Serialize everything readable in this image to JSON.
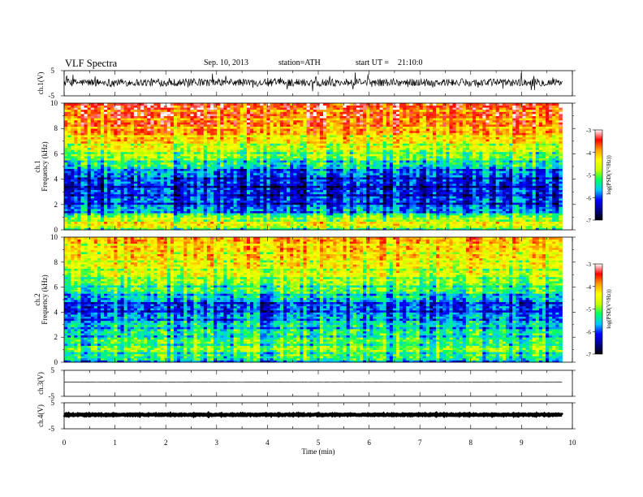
{
  "header": {
    "title": "VLF Spectra",
    "date": "Sep. 10, 2013",
    "station": "station=ATH",
    "start_label": "start UT =",
    "start_time": "21:10:0"
  },
  "colors": {
    "waveform": "#000000",
    "colormap": [
      "#000000",
      "#00008b",
      "#0000ff",
      "#00c8ff",
      "#00ff64",
      "#c8ff00",
      "#ffff00",
      "#ffa000",
      "#ff0000",
      "#ffffff"
    ]
  },
  "chart_data": [
    {
      "type": "line",
      "name": "ch1-waveform",
      "ylabel": "ch.1(V)",
      "ylim": [
        -5,
        5
      ],
      "y_ticks": [
        "5",
        "-5"
      ],
      "xlim": [
        0,
        10
      ],
      "data_end_min": 9.8,
      "baseline_v": 0.3,
      "noise_amplitude_v": 3
    },
    {
      "type": "heatmap",
      "name": "ch1-spectrogram",
      "ylabel": "ch.1 Frequency (kHz)",
      "ylim": [
        0,
        10
      ],
      "y_ticks": [
        "0",
        "2",
        "4",
        "6",
        "8",
        "10"
      ],
      "xlim": [
        0,
        10
      ],
      "data_end_min": 9.8,
      "colorbar": {
        "label": "log(PSD(V²/Hz))",
        "range": [
          -7,
          -3
        ],
        "ticks": [
          "-3",
          "-4",
          "-5",
          "-6",
          "-7"
        ]
      },
      "profile_kHz": [
        [
          0,
          -5.0
        ],
        [
          0.6,
          -4.3
        ],
        [
          1.5,
          -5.7
        ],
        [
          2.0,
          -6.0
        ],
        [
          3.5,
          -6.2
        ],
        [
          4.5,
          -5.9
        ],
        [
          5.5,
          -5.1
        ],
        [
          6.5,
          -4.6
        ],
        [
          8.0,
          -3.8
        ],
        [
          10,
          -3.5
        ]
      ]
    },
    {
      "type": "heatmap",
      "name": "ch2-spectrogram",
      "ylabel": "ch.2 Frequency (kHz)",
      "ylim": [
        0,
        10
      ],
      "y_ticks": [
        "0",
        "2",
        "4",
        "6",
        "8",
        "10"
      ],
      "xlim": [
        0,
        10
      ],
      "data_end_min": 9.8,
      "colorbar": {
        "label": "log(PSD(V²/Hz))",
        "range": [
          -7,
          -3
        ],
        "ticks": [
          "-3",
          "-4",
          "-5",
          "-6",
          "-7"
        ]
      },
      "profile_kHz": [
        [
          0,
          -5.5
        ],
        [
          1.0,
          -4.9
        ],
        [
          2.0,
          -5.2
        ],
        [
          3.0,
          -5.5
        ],
        [
          4.5,
          -6.0
        ],
        [
          5.5,
          -5.3
        ],
        [
          7.0,
          -4.6
        ],
        [
          8.5,
          -4.2
        ],
        [
          10,
          -4.0
        ]
      ]
    },
    {
      "type": "line",
      "name": "ch3-waveform",
      "ylabel": "ch.3(V)",
      "ylim": [
        -5,
        5
      ],
      "y_ticks": [
        "5",
        "-5"
      ],
      "xlim": [
        0,
        10
      ],
      "data_end_min": 9.8,
      "baseline_v": 0.5,
      "noise_amplitude_v": 0.1
    },
    {
      "type": "line",
      "name": "ch4-waveform",
      "ylabel": "ch.4(V)",
      "ylim": [
        -5,
        5
      ],
      "y_ticks": [
        "5",
        "-5"
      ],
      "xlim": [
        0,
        10
      ],
      "data_end_min": 9.8,
      "baseline_v": 0.4,
      "noise_amplitude_v": 0.35
    }
  ],
  "x_axis": {
    "label": "Time (min)",
    "range": [
      0,
      10
    ],
    "ticks": [
      "0",
      "1",
      "2",
      "3",
      "4",
      "5",
      "6",
      "7",
      "8",
      "9",
      "10"
    ]
  }
}
